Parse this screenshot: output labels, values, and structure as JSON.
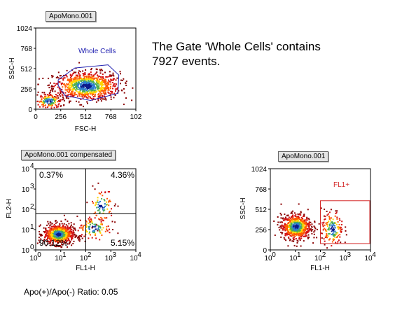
{
  "colors": {
    "gate": "#1f1fb0",
    "fl1_gate": "#d42a2a",
    "density": [
      "#8b0000",
      "#d41212",
      "#ff5a00",
      "#ffd400",
      "#4caf50",
      "#2e7fd0",
      "#0a1a8c"
    ]
  },
  "plots": {
    "p1": {
      "title": "ApoMono.001",
      "xlabel": "FSC-H",
      "ylabel": "SSC-H",
      "xticks": [
        "0",
        "256",
        "512",
        "768",
        "102"
      ],
      "yticks": [
        "0",
        "256",
        "512",
        "768",
        "1024"
      ],
      "gate_label": "Whole Cells"
    },
    "p2": {
      "title": "ApoMono.001 compensated",
      "xlabel": "FL1-H",
      "ylabel": "FL2-H",
      "quadrants": {
        "ul": "0.37%",
        "ur": "4.36%",
        "ll": "90.12%",
        "lr": "5.15%"
      }
    },
    "p3": {
      "title": "ApoMono.001",
      "xlabel": "FL1-H",
      "ylabel": "SSC-H",
      "yticks": [
        "0",
        "256",
        "512",
        "768",
        "1024"
      ],
      "gate_label": "FL1+"
    }
  },
  "stats": {
    "line1": "The Gate 'Whole Cells' contains",
    "line2": "7927 events."
  },
  "ratio": "Apo(+)/Apo(-) Ratio: 0.05",
  "chart_data": [
    {
      "type": "scatter",
      "title": "ApoMono.001",
      "xlabel": "FSC-H",
      "ylabel": "SSC-H",
      "xlim": [
        0,
        1024
      ],
      "ylim": [
        0,
        1024
      ],
      "clusters": [
        {
          "cx": 512,
          "cy": 300,
          "sx": 170,
          "sy": 90,
          "n": 900
        },
        {
          "cx": 130,
          "cy": 110,
          "sx": 70,
          "sy": 50,
          "n": 160
        }
      ],
      "gate": {
        "name": "Whole Cells",
        "polygon": [
          [
            230,
            370
          ],
          [
            400,
            520
          ],
          [
            740,
            560
          ],
          [
            850,
            430
          ],
          [
            840,
            200
          ],
          [
            560,
            110
          ],
          [
            300,
            170
          ],
          [
            230,
            300
          ]
        ]
      }
    },
    {
      "type": "scatter",
      "title": "ApoMono.001 compensated",
      "xlabel": "FL1-H",
      "ylabel": "FL2-H",
      "xscale": "log",
      "yscale": "log",
      "xlim": [
        1,
        10000
      ],
      "ylim": [
        1,
        10000
      ],
      "quadrant_divider": {
        "x": 100,
        "y": 60
      },
      "quadrant_percent": {
        "ul": 0.37,
        "ur": 4.36,
        "ll": 90.12,
        "lr": 5.15
      },
      "clusters": [
        {
          "lx": 0.9,
          "ly": 0.8,
          "sx": 0.3,
          "sy": 0.25,
          "n": 700
        },
        {
          "lx": 2.3,
          "ly": 1.1,
          "sx": 0.35,
          "sy": 0.3,
          "n": 110
        },
        {
          "lx": 2.6,
          "ly": 2.2,
          "sx": 0.25,
          "sy": 0.45,
          "n": 90
        }
      ]
    },
    {
      "type": "scatter",
      "title": "ApoMono.001",
      "xlabel": "FL1-H",
      "ylabel": "SSC-H",
      "xscale": "log",
      "xlim": [
        1,
        10000
      ],
      "ylim": [
        0,
        1024
      ],
      "clusters": [
        {
          "lx": 1.0,
          "cy": 300,
          "sx": 0.3,
          "sy": 80,
          "n": 650
        },
        {
          "lx": 2.45,
          "cy": 270,
          "sx": 0.22,
          "sy": 120,
          "n": 160
        }
      ],
      "gate": {
        "name": "FL1+",
        "x": [
          100,
          10000
        ],
        "y": [
          80,
          620
        ]
      }
    }
  ]
}
